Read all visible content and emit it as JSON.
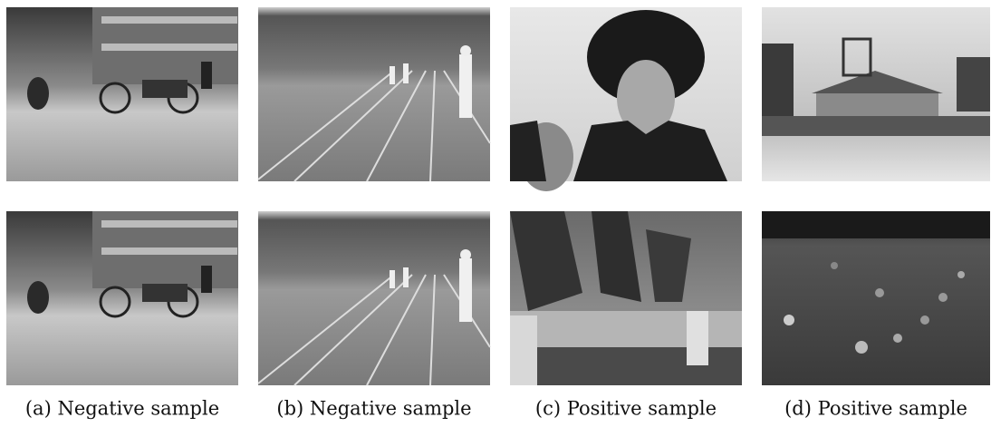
{
  "figure": {
    "captions": [
      "(a) Negative sample",
      "(b) Negative sample",
      "(c) Positive sample",
      "(d) Positive sample"
    ]
  }
}
